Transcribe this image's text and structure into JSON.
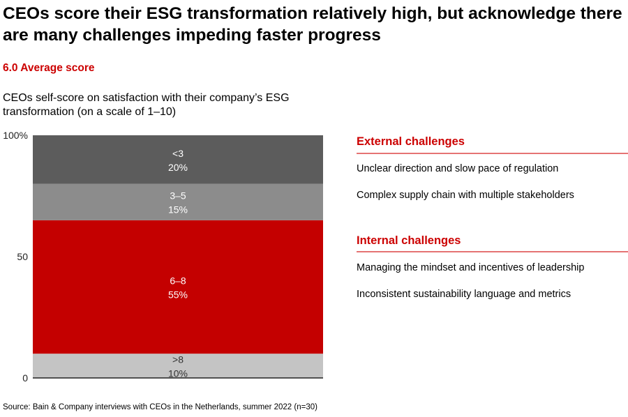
{
  "title": "CEOs score their ESG transformation relatively high, but acknowledge there are many challenges impeding faster progress",
  "average_label": "6.0 Average score",
  "chart_data": {
    "type": "bar",
    "stacked": true,
    "title": "CEOs self-score on satisfaction with their company’s ESG transformation (on a scale of 1–10)",
    "ylim": [
      0,
      100
    ],
    "yticks": [
      {
        "value": 0,
        "label": "0"
      },
      {
        "value": 50,
        "label": "50"
      },
      {
        "value": 100,
        "label": "100%"
      }
    ],
    "grid": false,
    "segments": [
      {
        "name": ">8",
        "value": 10,
        "label": "10%",
        "color": "#c4c4c4",
        "text_color": "#333333"
      },
      {
        "name": "6–8",
        "value": 55,
        "label": "55%",
        "color": "#c40000",
        "text_color": "#ffffff"
      },
      {
        "name": "3–5",
        "value": 15,
        "label": "15%",
        "color": "#8c8c8c",
        "text_color": "#ffffff"
      },
      {
        "name": "<3",
        "value": 20,
        "label": "20%",
        "color": "#5c5c5c",
        "text_color": "#ffffff"
      }
    ]
  },
  "challenges": {
    "external": {
      "title": "External challenges",
      "items": [
        "Unclear direction and slow pace of regulation",
        "Complex supply chain with multiple stakeholders"
      ]
    },
    "internal": {
      "title": "Internal challenges",
      "items": [
        "Managing the mindset and incentives of leadership",
        "Inconsistent sustainability language and metrics"
      ]
    }
  },
  "source": "Source: Bain & Company interviews with CEOs in the Netherlands, summer 2022 (n=30)"
}
